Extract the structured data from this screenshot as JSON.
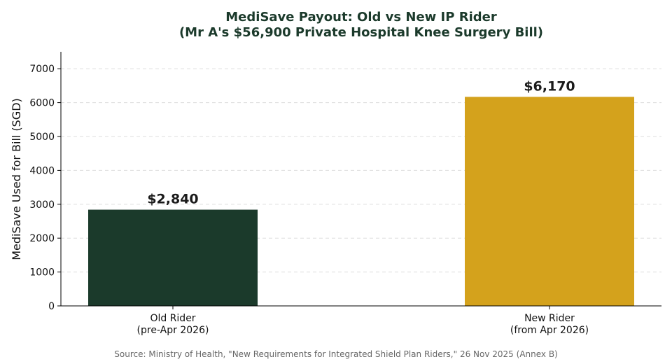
{
  "chart_data": {
    "type": "bar",
    "title": [
      "MediSave Payout: Old vs New IP Rider",
      "(Mr A's $56,900 Private Hospital Knee Surgery Bill)"
    ],
    "xlabel": "",
    "ylabel": "MediSave Used for Bill (SGD)",
    "ylim": [
      0,
      7500
    ],
    "yticks": [
      0,
      1000,
      2000,
      3000,
      4000,
      5000,
      6000,
      7000
    ],
    "grid": "y-dashed",
    "categories": [
      [
        "Old Rider",
        "(pre-Apr 2026)"
      ],
      [
        "New Rider",
        "(from Apr 2026)"
      ]
    ],
    "values": [
      2840,
      6170
    ],
    "value_labels": [
      "$2,840",
      "$6,170"
    ],
    "colors": [
      "#1b3a2b",
      "#d4a21c"
    ]
  },
  "source_note": "Source: Ministry of Health, \"New Requirements for Integrated Shield Plan Riders,\" 26 Nov 2025 (Annex B)"
}
